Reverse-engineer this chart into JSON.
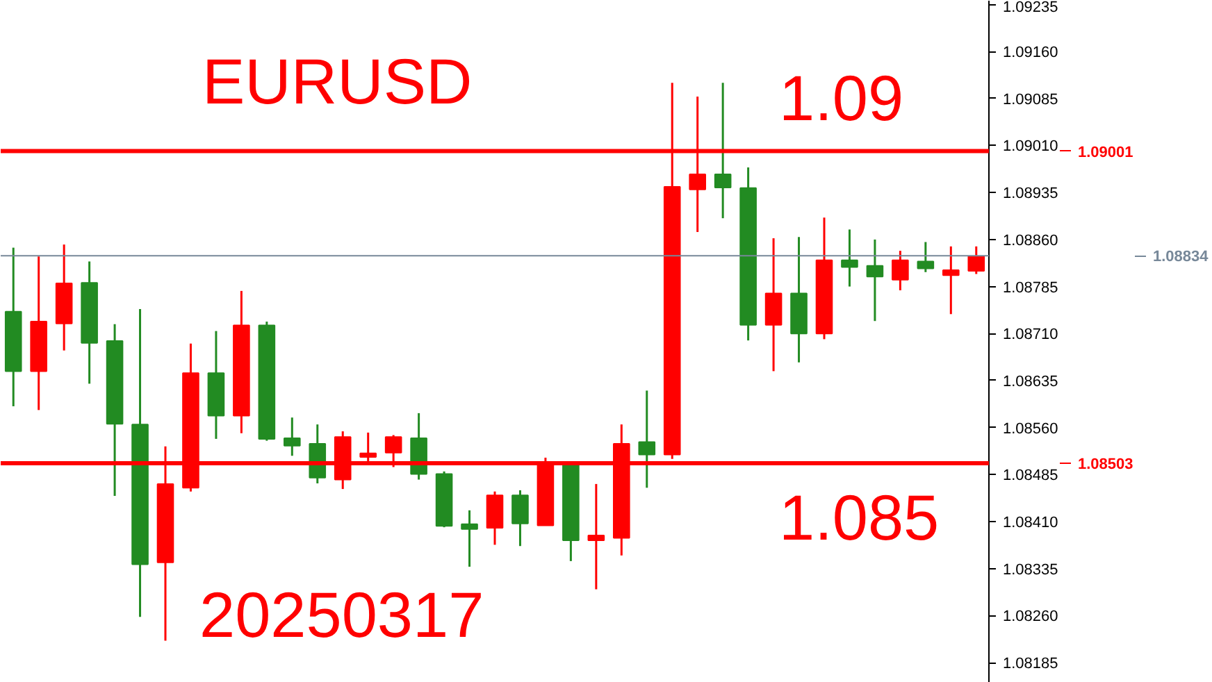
{
  "chart_data": {
    "type": "candlestick",
    "title": "EURUSD",
    "annotations": [
      "1.09",
      "1.085",
      "20250317"
    ],
    "categories": [
      null,
      null,
      null,
      null,
      null,
      null,
      null,
      null,
      null,
      null,
      null,
      null,
      null,
      null,
      null,
      null,
      null,
      null,
      null,
      null,
      null,
      null,
      null,
      null,
      null,
      null,
      null,
      null,
      null,
      null,
      null,
      null,
      null,
      null,
      null,
      null,
      null,
      null,
      null
    ],
    "ohlc": [
      [
        1.08745,
        1.08847,
        1.08594,
        1.0865
      ],
      [
        1.0865,
        1.08833,
        1.08588,
        1.08729
      ],
      [
        1.08726,
        1.08852,
        1.08683,
        1.0879
      ],
      [
        1.08791,
        1.08825,
        1.0863,
        1.08695
      ],
      [
        1.08698,
        1.08725,
        1.08451,
        1.08566
      ],
      [
        1.08565,
        1.08749,
        1.08258,
        1.08342
      ],
      [
        1.08345,
        1.0853,
        1.0822,
        1.0847
      ],
      [
        1.08464,
        1.08694,
        1.08458,
        1.08647
      ],
      [
        1.08647,
        1.08714,
        1.08542,
        1.08579
      ],
      [
        1.08579,
        1.08778,
        1.08551,
        1.08723
      ],
      [
        1.08723,
        1.08729,
        1.08539,
        1.08542
      ],
      [
        1.08543,
        1.08576,
        1.08515,
        1.08531
      ],
      [
        1.08534,
        1.08565,
        1.08471,
        1.0848
      ],
      [
        1.08477,
        1.08554,
        1.08462,
        1.08545
      ],
      [
        1.08513,
        1.08552,
        1.08506,
        1.08519
      ],
      [
        1.0852,
        1.08548,
        1.08497,
        1.08545
      ],
      [
        1.08543,
        1.08583,
        1.08477,
        1.08486
      ],
      [
        1.08486,
        1.0849,
        1.08401,
        1.08403
      ],
      [
        1.08406,
        1.08428,
        1.08338,
        1.08398
      ],
      [
        1.084,
        1.08458,
        1.08373,
        1.08452
      ],
      [
        1.08452,
        1.0846,
        1.08371,
        1.08407
      ],
      [
        1.08404,
        1.08512,
        1.08404,
        1.08504
      ],
      [
        1.08501,
        1.08504,
        1.08347,
        1.0838
      ],
      [
        1.0838,
        1.0847,
        1.08302,
        1.08388
      ],
      [
        1.08384,
        1.08565,
        1.08356,
        1.08534
      ],
      [
        1.08537,
        1.08619,
        1.08464,
        1.08517
      ],
      [
        1.08517,
        1.0911,
        1.0851,
        1.08944
      ],
      [
        1.0894,
        1.09088,
        1.08872,
        1.08964
      ],
      [
        1.08964,
        1.0911,
        1.08894,
        1.08943
      ],
      [
        1.08942,
        1.08975,
        1.08699,
        1.08724
      ],
      [
        1.08724,
        1.08862,
        1.0865,
        1.08774
      ],
      [
        1.08774,
        1.08864,
        1.08664,
        1.0871
      ],
      [
        1.0871,
        1.08895,
        1.08701,
        1.08827
      ],
      [
        1.08827,
        1.08876,
        1.08785,
        1.08816
      ],
      [
        1.08818,
        1.0886,
        1.0873,
        1.08801
      ],
      [
        1.08796,
        1.08842,
        1.08779,
        1.08827
      ],
      [
        1.08825,
        1.08856,
        1.08808,
        1.08814
      ],
      [
        1.08803,
        1.08849,
        1.08741,
        1.08811
      ],
      [
        1.0881,
        1.08849,
        1.08805,
        1.08833
      ]
    ],
    "colors": [
      "#228b22",
      "#ff0000",
      "#ff0000",
      "#228b22",
      "#228b22",
      "#228b22",
      "#ff0000",
      "#ff0000",
      "#228b22",
      "#ff0000",
      "#228b22",
      "#228b22",
      "#228b22",
      "#ff0000",
      "#ff0000",
      "#ff0000",
      "#228b22",
      "#228b22",
      "#228b22",
      "#ff0000",
      "#228b22",
      "#ff0000",
      "#228b22",
      "#ff0000",
      "#ff0000",
      "#228b22",
      "#ff0000",
      "#ff0000",
      "#228b22",
      "#228b22",
      "#ff0000",
      "#228b22",
      "#ff0000",
      "#228b22",
      "#228b22",
      "#ff0000",
      "#228b22",
      "#ff0000",
      "#ff0000"
    ],
    "ylim": [
      1.08153,
      1.09241
    ],
    "yticks": [
      {
        "value": 1.08185,
        "label": "1.08185"
      },
      {
        "value": 1.0826,
        "label": "1.08260"
      },
      {
        "value": 1.08335,
        "label": "1.08335"
      },
      {
        "value": 1.0841,
        "label": "1.08410"
      },
      {
        "value": 1.08485,
        "label": "1.08485"
      },
      {
        "value": 1.0856,
        "label": "1.08560"
      },
      {
        "value": 1.08635,
        "label": "1.08635"
      },
      {
        "value": 1.0871,
        "label": "1.08710"
      },
      {
        "value": 1.08785,
        "label": "1.08785"
      },
      {
        "value": 1.0886,
        "label": "1.08860"
      },
      {
        "value": 1.08935,
        "label": "1.08935"
      },
      {
        "value": 1.0901,
        "label": "1.09010"
      },
      {
        "value": 1.09085,
        "label": "1.09085"
      },
      {
        "value": 1.0916,
        "label": "1.09160"
      },
      {
        "value": 1.09235,
        "label": "1.09235"
      }
    ],
    "ref_lines": [
      {
        "axis": "y",
        "value": 1.09001,
        "label": "1.09001",
        "color": "#ff0000"
      },
      {
        "axis": "y",
        "value": 1.08834,
        "label": "1.08834",
        "color": "#778899"
      },
      {
        "axis": "y",
        "value": 1.08503,
        "label": "1.08503",
        "color": "#ff0000"
      }
    ],
    "tick_labels": "y",
    "grid": false
  }
}
